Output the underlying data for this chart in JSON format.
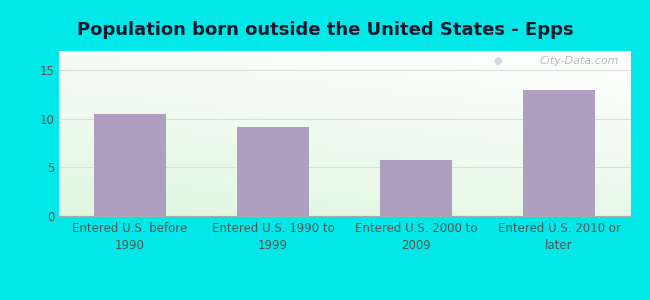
{
  "title": "Population born outside the United States - Epps",
  "categories": [
    "Entered U.S. before\n1990",
    "Entered U.S. 1990 to\n1999",
    "Entered U.S. 2000 to\n2009",
    "Entered U.S. 2010 or\nlater"
  ],
  "values": [
    10.5,
    9.2,
    5.8,
    13.0
  ],
  "bar_color": "#b09ec0",
  "background_outer": "#00e8e8",
  "ylim": [
    0,
    17
  ],
  "yticks": [
    0,
    5,
    10,
    15
  ],
  "grid_color": "#dddddd",
  "title_fontsize": 13,
  "tick_fontsize": 8.5,
  "watermark_text": "City-Data.com",
  "chart_bg_topleft": "#d8eed8",
  "chart_bg_topright": "#e8f5f0",
  "chart_bg_bottom": "#e8f5e8"
}
